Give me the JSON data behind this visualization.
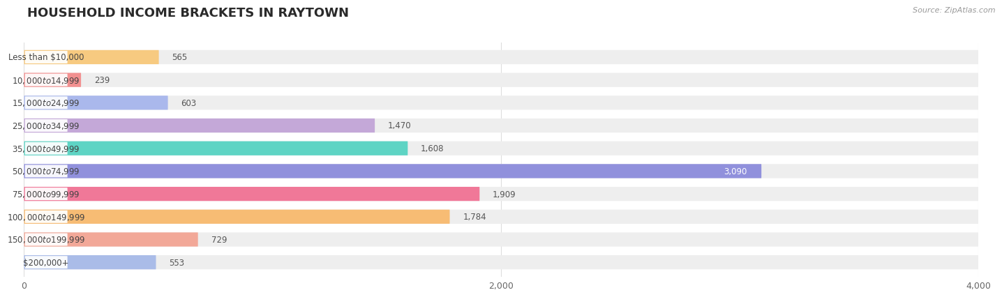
{
  "title": "HOUSEHOLD INCOME BRACKETS IN RAYTOWN",
  "source": "Source: ZipAtlas.com",
  "categories": [
    "Less than $10,000",
    "$10,000 to $14,999",
    "$15,000 to $24,999",
    "$25,000 to $34,999",
    "$35,000 to $49,999",
    "$50,000 to $74,999",
    "$75,000 to $99,999",
    "$100,000 to $149,999",
    "$150,000 to $199,999",
    "$200,000+"
  ],
  "values": [
    565,
    239,
    603,
    1470,
    1608,
    3090,
    1909,
    1784,
    729,
    553
  ],
  "bar_colors": [
    "#f7ca80",
    "#f29090",
    "#aab8ec",
    "#c4a8d8",
    "#5ed4c4",
    "#9090dc",
    "#f07898",
    "#f7bc74",
    "#f2a898",
    "#aabce8"
  ],
  "bar_bg_color": "#eeeeee",
  "xlim": [
    0,
    4000
  ],
  "xticks": [
    0,
    2000,
    4000
  ],
  "title_fontsize": 13,
  "label_fontsize": 8.5,
  "value_fontsize": 8.5,
  "background_color": "#ffffff",
  "bar_height": 0.62,
  "text_color": "#444444",
  "value_label_color": "#555555",
  "grid_color": "#dddddd",
  "source_color": "#999999"
}
